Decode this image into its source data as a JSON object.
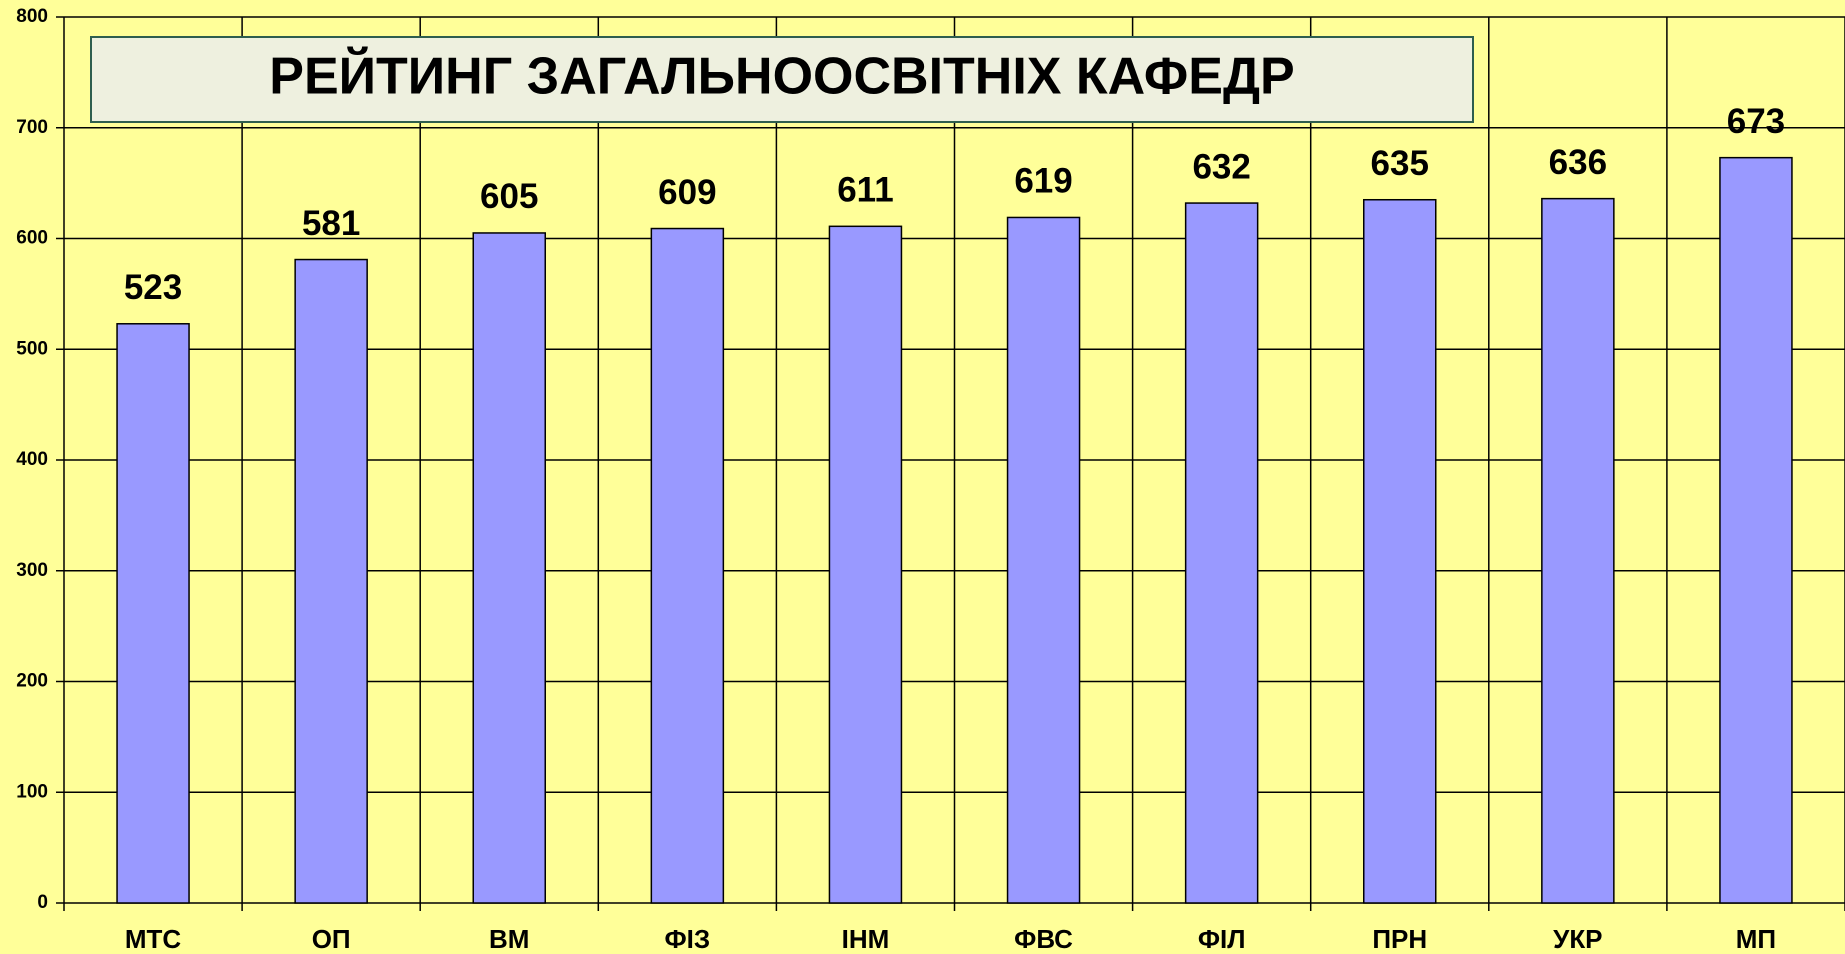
{
  "chart_data": {
    "type": "bar",
    "title": "РЕЙТИНГ ЗАГАЛЬНООСВІТНІХ КАФЕДР",
    "categories": [
      "МТС",
      "ОП",
      "ВМ",
      "ФІЗ",
      "ІНМ",
      "ФВС",
      "ФІЛ",
      "ПРН",
      "УКР",
      "МП"
    ],
    "values": [
      523,
      581,
      605,
      609,
      611,
      619,
      632,
      635,
      636,
      673
    ],
    "color": "#9999ff",
    "ylim": [
      0,
      800
    ],
    "yticks": [
      0,
      100,
      200,
      300,
      400,
      500,
      600,
      700,
      800
    ],
    "grid": true
  }
}
